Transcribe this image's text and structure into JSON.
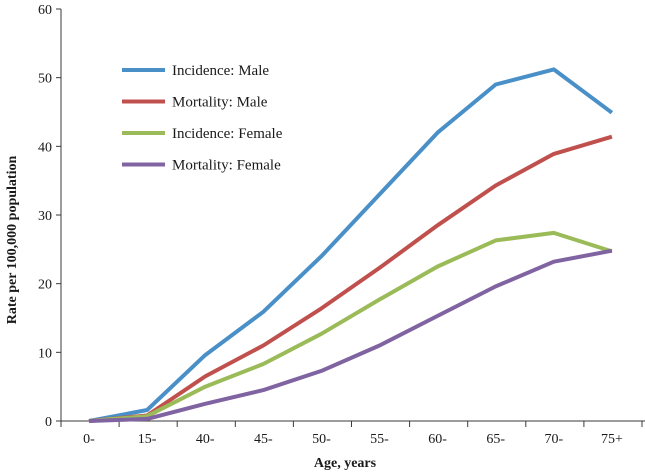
{
  "chart_data": {
    "type": "line",
    "title": "",
    "xlabel": "Age, years",
    "ylabel": "Rate per 100,000 population",
    "categories": [
      "0-",
      "15-",
      "40-",
      "45-",
      "50-",
      "55-",
      "60-",
      "65-",
      "70-",
      "75+"
    ],
    "ylim": [
      0,
      60
    ],
    "yticks": [
      0,
      10,
      20,
      30,
      40,
      50,
      60
    ],
    "grid": false,
    "legend_position": "top-left",
    "series": [
      {
        "name": "Incidence: Male",
        "color": "#4a90c8",
        "values": [
          0,
          1.6,
          9.6,
          15.9,
          24.0,
          33.0,
          42.0,
          49.0,
          51.2,
          44.9
        ]
      },
      {
        "name": "Mortality: Male",
        "color": "#c0504d",
        "values": [
          0,
          0.8,
          6.5,
          11.0,
          16.4,
          22.3,
          28.5,
          34.3,
          38.9,
          41.4
        ]
      },
      {
        "name": "Incidence: Female",
        "color": "#9bbb59",
        "values": [
          0,
          0.7,
          5.0,
          8.3,
          12.7,
          17.7,
          22.5,
          26.3,
          27.4,
          24.7
        ]
      },
      {
        "name": "Mortality: Female",
        "color": "#8064a2",
        "values": [
          0,
          0.3,
          2.5,
          4.5,
          7.3,
          11.0,
          15.3,
          19.6,
          23.2,
          24.8
        ]
      }
    ]
  }
}
